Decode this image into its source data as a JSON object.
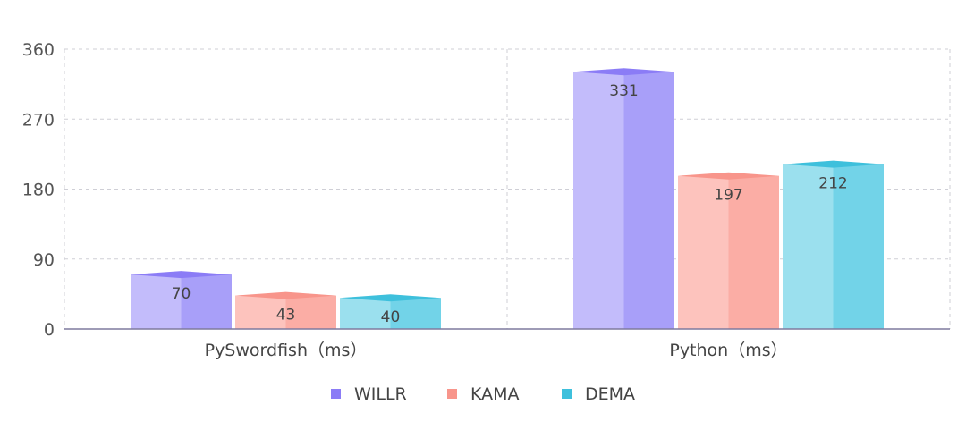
{
  "chart_data": {
    "type": "bar",
    "categories": [
      "PySwordfish（ms）",
      "Python（ms）"
    ],
    "series": [
      {
        "name": "WILLR",
        "values": [
          70,
          331
        ],
        "color": "#8b7cf6",
        "light": "#c3bcfb",
        "dark": "#a89ff9"
      },
      {
        "name": "KAMA",
        "values": [
          43,
          197
        ],
        "color": "#f8958b",
        "light": "#fdc3bd",
        "dark": "#fbada5"
      },
      {
        "name": "DEMA",
        "values": [
          40,
          212
        ],
        "color": "#3ec0dc",
        "light": "#9be0ee",
        "dark": "#72d3e8"
      }
    ],
    "y_ticks": [
      0,
      90,
      180,
      270,
      360
    ],
    "ylim": [
      0,
      360
    ],
    "grid": true,
    "legend_position": "bottom-center",
    "title": "",
    "xlabel": "",
    "ylabel": ""
  }
}
